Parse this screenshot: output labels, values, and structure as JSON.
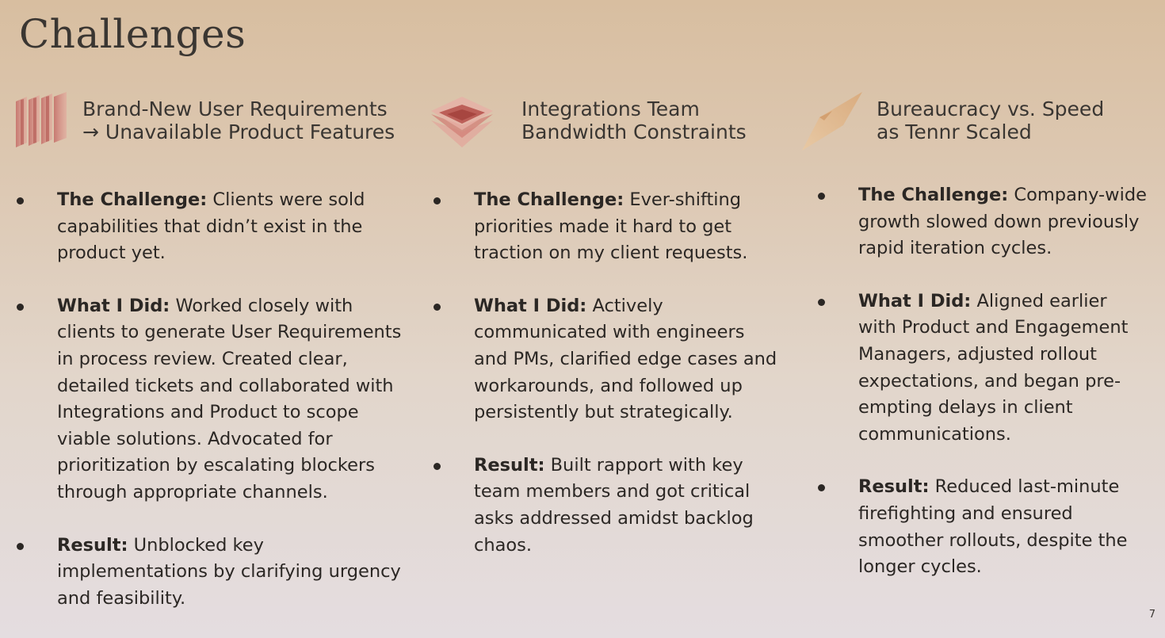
{
  "title": "Challenges",
  "page_number": "7",
  "columns": [
    {
      "heading": "Brand-New User Requirements\n→ Unavailable Product Features",
      "icon": "stacked-panels-icon",
      "items": [
        {
          "label": "The Challenge:",
          "text": " Clients were sold capabilities that didn’t exist in the product yet."
        },
        {
          "label": "What I Did:",
          "text": " Worked closely with clients to generate User Requirements in process review. Created clear, detailed tickets and collaborated with Integrations and Product to scope viable solutions. Advocated for prioritization by escalating blockers through appropriate channels."
        },
        {
          "label": "Result:",
          "text": " Unblocked key implementations by clarifying urgency and feasibility."
        }
      ]
    },
    {
      "heading": "Integrations Team\nBandwidth Constraints",
      "icon": "stacked-layers-icon",
      "items": [
        {
          "label": "The Challenge:",
          "text": " Ever-shifting priorities made it hard to get traction on my client requests."
        },
        {
          "label": "What I Did:",
          "text": " Actively communicated with engineers and PMs, clarified edge cases and workarounds, and followed up persistently but strategically."
        },
        {
          "label": "Result:",
          "text": " Built rapport with key team members and got critical asks addressed amidst backlog chaos."
        }
      ]
    },
    {
      "heading": "Bureaucracy vs. Speed\nas Tennr Scaled",
      "icon": "tilted-card-icon",
      "items": [
        {
          "label": "The Challenge:",
          "text": " Company-wide growth slowed down previously rapid iteration cycles."
        },
        {
          "label": "What I Did:",
          "text": " Aligned earlier with Product and Engagement Managers, adjusted rollout expectations, and began pre-empting delays in client communications."
        },
        {
          "label": "Result:",
          "text": " Reduced last-minute firefighting and ensured smoother rollouts, despite the longer cycles."
        }
      ]
    }
  ]
}
